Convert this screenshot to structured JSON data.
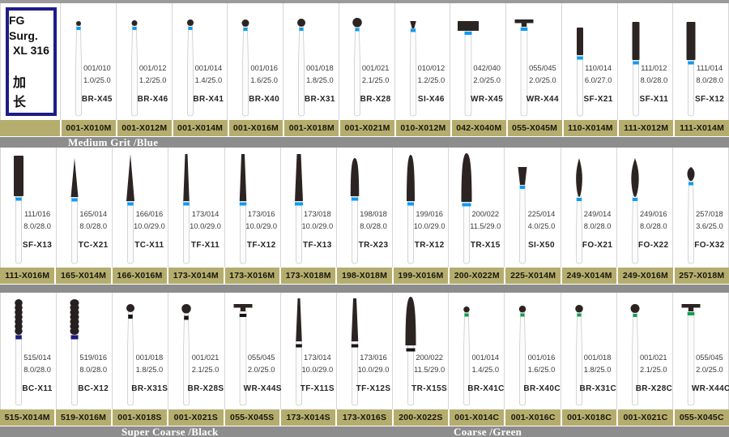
{
  "title_box": {
    "line1": "FG Surg.",
    "line2": "XL 316",
    "line3": "加 长"
  },
  "grit_labels": {
    "medium": "Medium Grit /Blue",
    "super_coarse": "Super Coarse /Black",
    "coarse": "Coarse /Green"
  },
  "colors": {
    "bar_olive": "#b5ad6e",
    "bar_gray": "#8d8d8d",
    "band_blue": "#0e9bf2",
    "band_green": "#0da04c",
    "band_black": "#151515",
    "band_navy": "#1c1b7e",
    "head_dark": "#2c2423",
    "border_navy": "#1d1d87"
  },
  "rows": [
    {
      "id": "medium-grit-row-1",
      "cells": [
        {
          "iso": "001/010",
          "size": "1.0/25.0",
          "model": "BR-X45",
          "code": "001-X010M",
          "head": "ball",
          "band": "blue",
          "hw": 6,
          "hh": 0,
          "ht": 22
        },
        {
          "iso": "001/012",
          "size": "1.2/25.0",
          "model": "BR-X46",
          "code": "001-X012M",
          "head": "ball",
          "band": "blue",
          "hw": 7,
          "hh": 0,
          "ht": 21
        },
        {
          "iso": "001/014",
          "size": "1.4/25.0",
          "model": "BR-X41",
          "code": "001-X014M",
          "head": "ball",
          "band": "blue",
          "hw": 8,
          "hh": 0,
          "ht": 20
        },
        {
          "iso": "001/016",
          "size": "1.6/25.0",
          "model": "BR-X40",
          "code": "001-X016M",
          "head": "ball",
          "band": "blue",
          "hw": 9,
          "hh": 0,
          "ht": 20
        },
        {
          "iso": "001/018",
          "size": "1.8/25.0",
          "model": "BR-X31",
          "code": "001-X018M",
          "head": "ball",
          "band": "blue",
          "hw": 10,
          "hh": 0,
          "ht": 19
        },
        {
          "iso": "001/021",
          "size": "2.1/25.0",
          "model": "BR-X28",
          "code": "001-X021M",
          "head": "ball",
          "band": "blue",
          "hw": 11.5,
          "hh": 0,
          "ht": 18
        },
        {
          "iso": "010/012",
          "size": "1.2/25.0",
          "model": "SI-X46",
          "code": "010-X012M",
          "head": "invcone",
          "band": "blue",
          "hw": 7.5,
          "hh": 9,
          "ht": 22
        },
        {
          "iso": "042/040",
          "size": "2.0/25.0",
          "model": "WR-X45",
          "code": "042-X040M",
          "head": "wheel",
          "band": "blue",
          "hw": 26,
          "hh": 12,
          "ht": 22
        },
        {
          "iso": "055/045",
          "size": "2.0/25.0",
          "model": "WR-X44",
          "code": "055-X045M",
          "head": "tbar",
          "band": "blue",
          "hw": 23,
          "hh": 9,
          "ht": 20
        },
        {
          "iso": "110/014",
          "size": "6.0/27.0",
          "model": "SF-X21",
          "code": "110-X014M",
          "head": "cyl",
          "band": "blue",
          "hw": 8,
          "hh": 34,
          "ht": 30
        },
        {
          "iso": "111/012",
          "size": "8.0/28.0",
          "model": "SF-X11",
          "code": "111-X012M",
          "head": "cyl",
          "band": "blue",
          "hw": 9,
          "hh": 47,
          "ht": 23
        },
        {
          "iso": "111/014",
          "size": "8.0/28.0",
          "model": "SF-X12",
          "code": "111-X014M",
          "head": "cyl",
          "band": "blue",
          "hw": 11,
          "hh": 47,
          "ht": 23
        }
      ]
    },
    {
      "id": "medium-grit-row-2",
      "cells": [
        {
          "iso": "111/016",
          "size": "8.0/28.0",
          "model": "SF-X13",
          "code": "111-X016M",
          "head": "cyl",
          "band": "blue",
          "hw": 12,
          "hh": 50,
          "ht": 10
        },
        {
          "iso": "165/014",
          "size": "8.0/28.0",
          "model": "TC-X21",
          "code": "165-X014M",
          "head": "cone",
          "band": "blue",
          "hw": 9,
          "hh": 48,
          "ht": 13
        },
        {
          "iso": "166/016",
          "size": "10.0/29.0",
          "model": "TC-X11",
          "code": "166-X016M",
          "head": "cone",
          "band": "blue",
          "hw": 10,
          "hh": 58,
          "ht": 8
        },
        {
          "iso": "173/014",
          "size": "10.0/29.0",
          "model": "TF-X11",
          "code": "173-X014M",
          "head": "tf",
          "band": "blue",
          "tw": 3,
          "hw": 7.5,
          "hh": 58,
          "ht": 8
        },
        {
          "iso": "173/016",
          "size": "10.0/29.0",
          "model": "TF-X12",
          "code": "173-X016M",
          "head": "tf",
          "band": "blue",
          "tw": 4,
          "hw": 8.5,
          "hh": 58,
          "ht": 8
        },
        {
          "iso": "173/018",
          "size": "10.0/29.0",
          "model": "TF-X13",
          "code": "173-X018M",
          "head": "tf",
          "band": "blue",
          "tw": 5,
          "hw": 10,
          "hh": 58,
          "ht": 8
        },
        {
          "iso": "198/018",
          "size": "8.0/28.0",
          "model": "TR-X23",
          "code": "198-X018M",
          "head": "tr",
          "band": "blue",
          "hw": 10.5,
          "hh": 47,
          "ht": 13
        },
        {
          "iso": "199/016",
          "size": "10.0/29.0",
          "model": "TR-X12",
          "code": "199-X016M",
          "head": "tr",
          "band": "blue",
          "hw": 10,
          "hh": 57,
          "ht": 9
        },
        {
          "iso": "200/022",
          "size": "11.5/29.0",
          "model": "TR-X15",
          "code": "200-X022M",
          "head": "tr",
          "band": "blue",
          "hw": 13,
          "hh": 60,
          "ht": 7
        },
        {
          "iso": "225/014",
          "size": "4.0/25.0",
          "model": "SI-X50",
          "code": "225-X014M",
          "head": "flare",
          "band": "blue",
          "hw": 11,
          "hh": 22,
          "ht": 24
        },
        {
          "iso": "249/014",
          "size": "8.0/28.0",
          "model": "FO-X21",
          "code": "249-X014M",
          "head": "flame",
          "band": "blue",
          "hw": 9.5,
          "hh": 48,
          "ht": 13
        },
        {
          "iso": "249/016",
          "size": "8.0/28.0",
          "model": "FO-X22",
          "code": "249-X016M",
          "head": "flame",
          "band": "blue",
          "hw": 11.5,
          "hh": 48,
          "ht": 13
        },
        {
          "iso": "257/018",
          "size": "3.6/25.0",
          "model": "FO-X32",
          "code": "257-X018M",
          "head": "egg",
          "band": "blue",
          "hw": 11,
          "hh": 17,
          "ht": 24
        }
      ]
    },
    {
      "id": "coarse-row",
      "cells": [
        {
          "iso": "515/014",
          "size": "8.0/28.0",
          "model": "BC-X11",
          "code": "515-X014M",
          "head": "bead",
          "band": "navy",
          "hw": 9.5,
          "hh": 44,
          "ht": 8
        },
        {
          "iso": "519/016",
          "size": "8.0/28.0",
          "model": "BC-X12",
          "code": "519-X016M",
          "head": "bead",
          "band": "navy",
          "hw": 11,
          "hh": 44,
          "ht": 8
        },
        {
          "iso": "001/018",
          "size": "1.8/25.0",
          "model": "BR-X31S",
          "code": "001-X018S",
          "head": "ball",
          "band": "black",
          "hw": 10,
          "hh": 0,
          "ht": 14
        },
        {
          "iso": "001/021",
          "size": "2.1/25.0",
          "model": "BR-X28S",
          "code": "001-X021S",
          "head": "ball",
          "band": "black",
          "hw": 11.5,
          "hh": 0,
          "ht": 14
        },
        {
          "iso": "055/045",
          "size": "2.0/25.0",
          "model": "WR-X44S",
          "code": "055-X045S",
          "head": "tbar",
          "band": "black",
          "hw": 23,
          "hh": 9,
          "ht": 14
        },
        {
          "iso": "173/014",
          "size": "10.0/29.0",
          "model": "TF-X11S",
          "code": "173-X014S",
          "head": "tf",
          "band": "black",
          "tw": 3,
          "hw": 7.5,
          "hh": 53,
          "ht": 7
        },
        {
          "iso": "173/016",
          "size": "10.0/29.0",
          "model": "TF-X12S",
          "code": "173-X016S",
          "head": "tf",
          "band": "black",
          "tw": 4,
          "hw": 8.5,
          "hh": 53,
          "ht": 7
        },
        {
          "iso": "200/022",
          "size": "11.5/29.0",
          "model": "TR-X15S",
          "code": "200-X022S",
          "head": "tr",
          "band": "black",
          "hw": 13,
          "hh": 60,
          "ht": 5
        },
        {
          "iso": "001/014",
          "size": "1.4/25.0",
          "model": "BR-X41C",
          "code": "001-X014C",
          "head": "ball",
          "band": "green",
          "hw": 7.5,
          "hh": 0,
          "ht": 17
        },
        {
          "iso": "001/016",
          "size": "1.6/25.0",
          "model": "BR-X40C",
          "code": "001-X016C",
          "head": "ball",
          "band": "green",
          "hw": 8.5,
          "hh": 0,
          "ht": 16
        },
        {
          "iso": "001/018",
          "size": "1.8/25.0",
          "model": "BR-X31C",
          "code": "001-X018C",
          "head": "ball",
          "band": "green",
          "hw": 9.5,
          "hh": 0,
          "ht": 15
        },
        {
          "iso": "001/021",
          "size": "2.1/25.0",
          "model": "BR-X28C",
          "code": "001-X021C",
          "head": "ball",
          "band": "green",
          "hw": 11,
          "hh": 0,
          "ht": 14
        },
        {
          "iso": "055/045",
          "size": "2.0/25.0",
          "model": "WR-X44C",
          "code": "055-X045C",
          "head": "tbar",
          "band": "green",
          "hw": 23,
          "hh": 9,
          "ht": 14
        }
      ]
    }
  ]
}
